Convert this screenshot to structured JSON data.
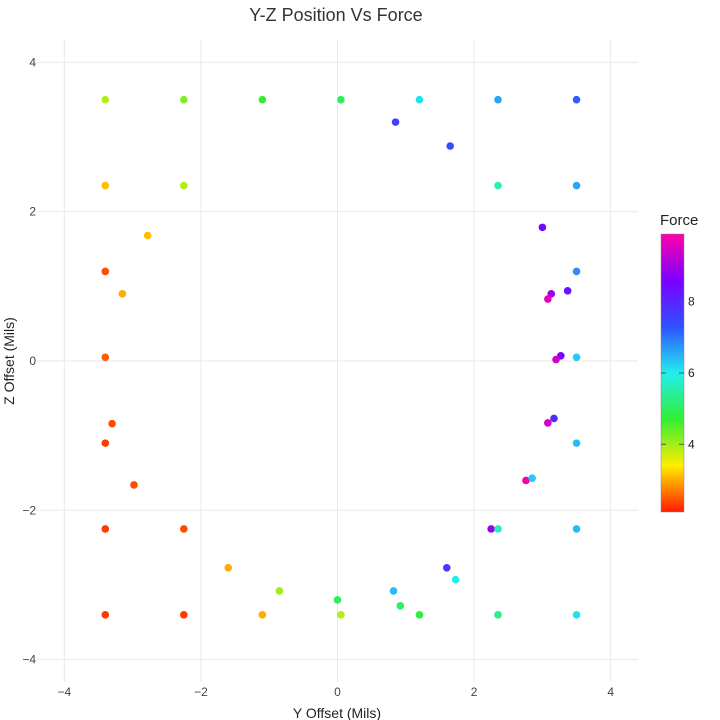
{
  "chart_data": {
    "type": "scatter",
    "title": "Y-Z Position Vs Force",
    "xlabel": "Y Offset (Mils)",
    "ylabel": "Z Offset (Mils)",
    "xlim": [
      -4.4,
      4.4
    ],
    "ylim": [
      -4.3,
      4.3
    ],
    "xticks": [
      -4,
      -2,
      0,
      2,
      4
    ],
    "yticks": [
      -4,
      -2,
      0,
      2,
      4
    ],
    "xtick_labels": [
      "−4",
      "−2",
      "0",
      "2",
      "4"
    ],
    "ytick_labels": [
      "−4",
      "−2",
      "0",
      "2",
      "4"
    ],
    "grid": true,
    "colorbar": {
      "title": "Force",
      "range": [
        2.1,
        9.9
      ],
      "ticks": [
        4,
        6,
        8
      ],
      "tick_labels": [
        "4",
        "6",
        "8"
      ],
      "colors": [
        "#ff1a00",
        "#ffee00",
        "#33ee33",
        "#22eeee",
        "#3050ff",
        "#7a00ff",
        "#ff00aa"
      ]
    },
    "points": [
      {
        "y": -3.4,
        "z": 3.5,
        "force": 3.9
      },
      {
        "y": -2.25,
        "z": 3.5,
        "force": 4.2
      },
      {
        "y": -1.1,
        "z": 3.5,
        "force": 4.7
      },
      {
        "y": 0.05,
        "z": 3.5,
        "force": 5.0
      },
      {
        "y": 1.2,
        "z": 3.5,
        "force": 6.1
      },
      {
        "y": 2.35,
        "z": 3.5,
        "force": 6.6
      },
      {
        "y": 3.5,
        "z": 3.5,
        "force": 7.2
      },
      {
        "y": 0.85,
        "z": 3.2,
        "force": 7.6
      },
      {
        "y": 1.65,
        "z": 2.88,
        "force": 7.3
      },
      {
        "y": -3.4,
        "z": 2.35,
        "force": 3.1
      },
      {
        "y": -2.25,
        "z": 2.35,
        "force": 3.9
      },
      {
        "y": 2.35,
        "z": 2.35,
        "force": 5.6
      },
      {
        "y": 3.5,
        "z": 2.35,
        "force": 6.6
      },
      {
        "y": -2.78,
        "z": 1.68,
        "force": 3.1
      },
      {
        "y": 3.0,
        "z": 1.79,
        "force": 8.4
      },
      {
        "y": -3.4,
        "z": 1.2,
        "force": 2.4
      },
      {
        "y": 3.5,
        "z": 1.2,
        "force": 6.8
      },
      {
        "y": -3.15,
        "z": 0.9,
        "force": 3.0
      },
      {
        "y": 3.13,
        "z": 0.9,
        "force": 9.0
      },
      {
        "y": 3.37,
        "z": 0.94,
        "force": 8.3
      },
      {
        "y": 3.08,
        "z": 0.83,
        "force": 9.6
      },
      {
        "y": -3.4,
        "z": 0.05,
        "force": 2.5
      },
      {
        "y": 3.27,
        "z": 0.07,
        "force": 8.6
      },
      {
        "y": 3.2,
        "z": 0.02,
        "force": 9.4
      },
      {
        "y": 3.5,
        "z": 0.05,
        "force": 6.3
      },
      {
        "y": -3.3,
        "z": -0.84,
        "force": 2.4
      },
      {
        "y": 3.17,
        "z": -0.77,
        "force": 7.9
      },
      {
        "y": 3.08,
        "z": -0.83,
        "force": 9.5
      },
      {
        "y": -3.4,
        "z": -1.1,
        "force": 2.3
      },
      {
        "y": 3.5,
        "z": -1.1,
        "force": 6.4
      },
      {
        "y": -2.98,
        "z": -1.66,
        "force": 2.4
      },
      {
        "y": 2.76,
        "z": -1.6,
        "force": 9.8
      },
      {
        "y": 2.85,
        "z": -1.57,
        "force": 6.3
      },
      {
        "y": -3.4,
        "z": -2.25,
        "force": 2.3
      },
      {
        "y": -2.25,
        "z": -2.25,
        "force": 2.4
      },
      {
        "y": 2.25,
        "z": -2.25,
        "force": 9.0
      },
      {
        "y": 2.35,
        "z": -2.25,
        "force": 5.7
      },
      {
        "y": 3.5,
        "z": -2.25,
        "force": 6.4
      },
      {
        "y": -1.6,
        "z": -2.77,
        "force": 3.0
      },
      {
        "y": 1.6,
        "z": -2.77,
        "force": 7.7
      },
      {
        "y": 1.73,
        "z": -2.93,
        "force": 6.0
      },
      {
        "y": -0.85,
        "z": -3.08,
        "force": 4.0
      },
      {
        "y": 0.82,
        "z": -3.08,
        "force": 6.4
      },
      {
        "y": 0.0,
        "z": -3.2,
        "force": 5.0
      },
      {
        "y": 0.92,
        "z": -3.28,
        "force": 5.1
      },
      {
        "y": -3.4,
        "z": -3.4,
        "force": 2.3
      },
      {
        "y": -2.25,
        "z": -3.4,
        "force": 2.3
      },
      {
        "y": -1.1,
        "z": -3.4,
        "force": 3.0
      },
      {
        "y": 0.05,
        "z": -3.4,
        "force": 3.9
      },
      {
        "y": 1.2,
        "z": -3.4,
        "force": 4.8
      },
      {
        "y": 2.35,
        "z": -3.4,
        "force": 5.3
      },
      {
        "y": 3.5,
        "z": -3.4,
        "force": 6.1
      }
    ]
  }
}
